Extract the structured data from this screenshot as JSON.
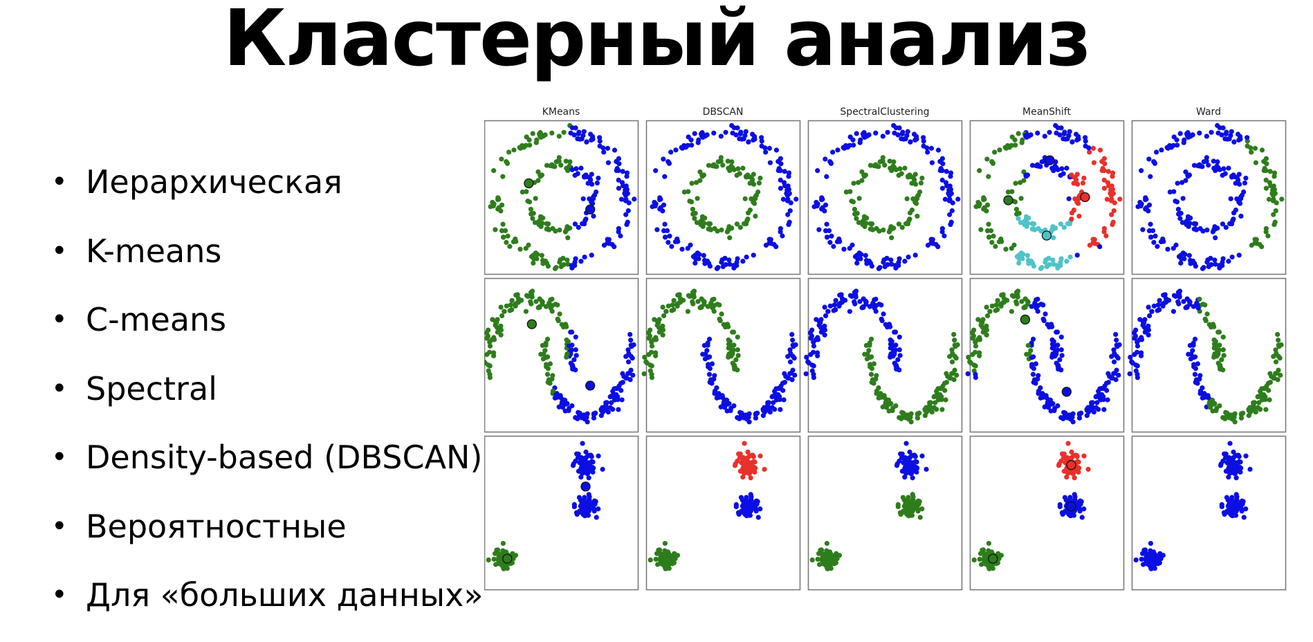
{
  "slide": {
    "title": "Кластерный анализ",
    "bullets": [
      "Иерархическая",
      "K-means",
      "C-means",
      "Spectral",
      "Density-based (DBSCAN)",
      "Вероятностные",
      "Для «больших данных»"
    ]
  },
  "figure": {
    "algorithms": [
      "KMeans",
      "DBSCAN",
      "SpectralClustering",
      "MeanShift",
      "Ward"
    ],
    "datasets": [
      "circles",
      "moons",
      "blobs"
    ],
    "colors": {
      "blue": "#0b0fe3",
      "green": "#2e7d1c",
      "red": "#e8312a",
      "cyan": "#4fc3c8",
      "frame": "#7a7a7a"
    }
  }
}
